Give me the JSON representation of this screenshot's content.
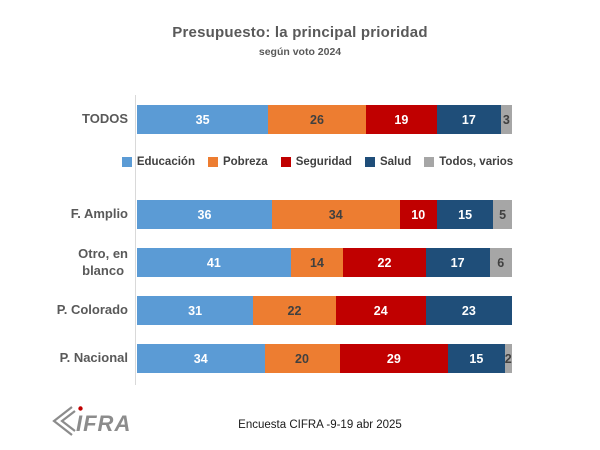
{
  "header": {
    "title": "Presupuesto: la principal prioridad",
    "subtitle": "según voto 2024"
  },
  "footer": {
    "caption": "Encuesta CIFRA -9-19 abr 2025",
    "logo_text": "IFRA"
  },
  "colors": {
    "educacion": "#5B9BD5",
    "pobreza": "#ED7D31",
    "seguridad": "#C00000",
    "salud": "#1F4E79",
    "todos_varios": "#A6A6A6",
    "axis_line": "#D9D9D9",
    "label_dark": "#404040",
    "label_light": "#FFFFFF",
    "heading": "#595959",
    "logo_gray": "#8C8C8C",
    "logo_dot_red": "#C00000"
  },
  "chart_data": {
    "type": "bar",
    "orientation": "horizontal",
    "stacked": true,
    "units": "percent",
    "xlim": [
      0,
      100
    ],
    "grid": false,
    "legend_position": "between-row-1-and-row-2",
    "categories": [
      "TODOS",
      "F. Amplio",
      "Otro, en blanco",
      "P. Colorado",
      "P. Nacional"
    ],
    "categories_display": [
      "TODOS",
      "F. Amplio",
      "Otro, en\nblanco",
      "P. Colorado",
      "P. Nacional"
    ],
    "series": [
      {
        "name": "Educación",
        "color": "#5B9BD5",
        "label_color": "#FFFFFF",
        "values": [
          35,
          36,
          41,
          31,
          34
        ]
      },
      {
        "name": "Pobreza",
        "color": "#ED7D31",
        "label_color": "#404040",
        "values": [
          26,
          34,
          14,
          22,
          20
        ]
      },
      {
        "name": "Seguridad",
        "color": "#C00000",
        "label_color": "#FFFFFF",
        "values": [
          19,
          10,
          22,
          24,
          29
        ]
      },
      {
        "name": "Salud",
        "color": "#1F4E79",
        "label_color": "#FFFFFF",
        "values": [
          17,
          15,
          17,
          23,
          15
        ]
      },
      {
        "name": "Todos, varios",
        "color": "#A6A6A6",
        "label_color": "#404040",
        "values": [
          3,
          5,
          6,
          0,
          2
        ]
      }
    ]
  }
}
